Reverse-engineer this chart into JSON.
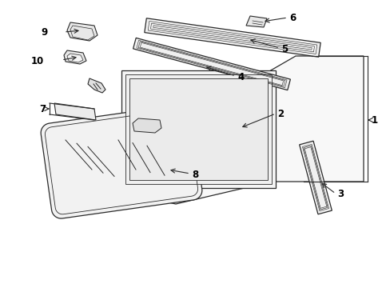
{
  "background_color": "#ffffff",
  "line_color": "#2a2a2a",
  "figure_width": 4.89,
  "figure_height": 3.6,
  "dpi": 100
}
